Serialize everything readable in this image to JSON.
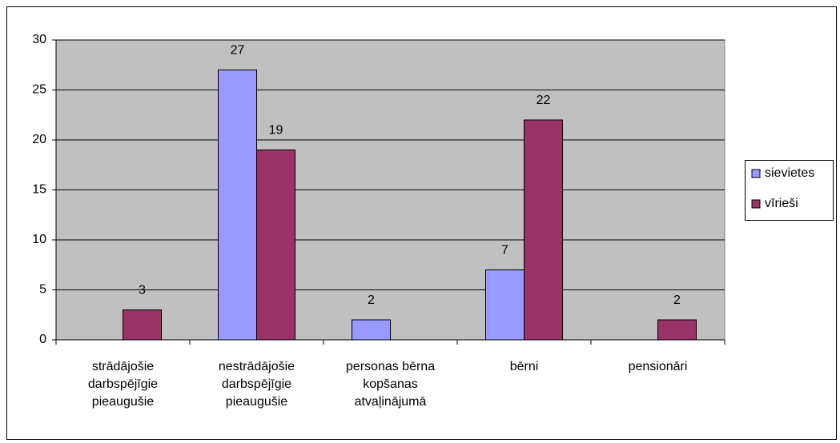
{
  "chart_data": {
    "type": "bar",
    "categories": [
      "strādājošie darbspējīgie pieaugušie",
      "nestrādājošie darbspējīgie pieaugušie",
      "personas bērna kopšanas atvaļinājumā",
      "bērni",
      "pensionāri"
    ],
    "series": [
      {
        "name": "sievietes",
        "color": "#9999ff",
        "values": [
          null,
          27,
          2,
          7,
          null
        ]
      },
      {
        "name": "vīrieši",
        "color": "#993366",
        "values": [
          3,
          19,
          null,
          22,
          2
        ]
      }
    ],
    "ylim": [
      0,
      30
    ],
    "yticks": [
      0,
      5,
      10,
      15,
      20,
      25,
      30
    ],
    "grid": true,
    "legend": "right",
    "plot_background": "#c0c0c0"
  }
}
